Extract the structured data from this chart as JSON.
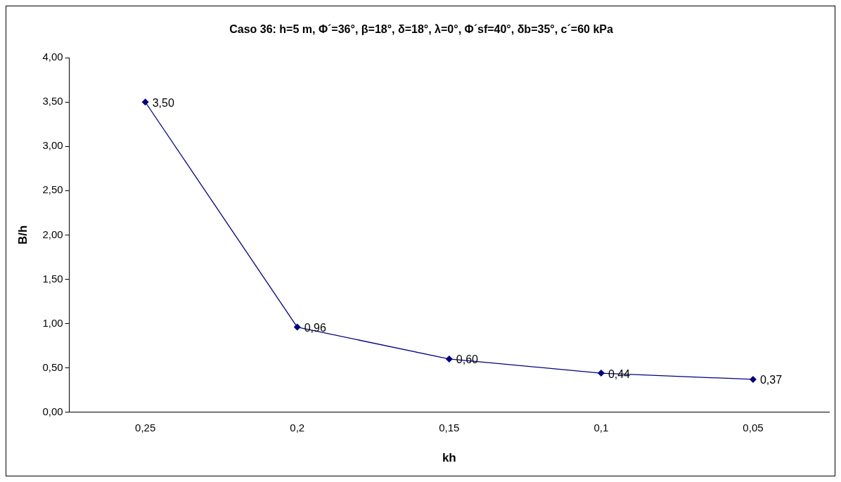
{
  "chart_data": {
    "type": "line",
    "title": "Caso 36: h=5 m, Φ´=36°, β=18°, δ=18°, λ=0°, Φ´sf=40°, δb=35°, c´=60 kPa",
    "xlabel": "kh",
    "ylabel": "B/h",
    "categories": [
      "0,25",
      "0,2",
      "0,15",
      "0,1",
      "0,05"
    ],
    "series": [
      {
        "color": "#000080",
        "values": [
          3.5,
          0.96,
          0.6,
          0.44,
          0.37
        ],
        "value_labels": [
          "3,50",
          "0,96",
          "0,60",
          "0,44",
          "0,37"
        ]
      }
    ],
    "ylim": [
      0,
      4
    ],
    "yticks": [
      {
        "value": 0,
        "label": "0,00"
      },
      {
        "value": 0.5,
        "label": "0,50"
      },
      {
        "value": 1,
        "label": "1,00"
      },
      {
        "value": 1.5,
        "label": "1,50"
      },
      {
        "value": 2,
        "label": "2,00"
      },
      {
        "value": 2.5,
        "label": "2,50"
      },
      {
        "value": 3,
        "label": "3,00"
      },
      {
        "value": 3.5,
        "label": "3,50"
      },
      {
        "value": 4,
        "label": "4,00"
      }
    ],
    "grid": false,
    "legend": false,
    "marker": "diamond",
    "line_style": "solid"
  }
}
